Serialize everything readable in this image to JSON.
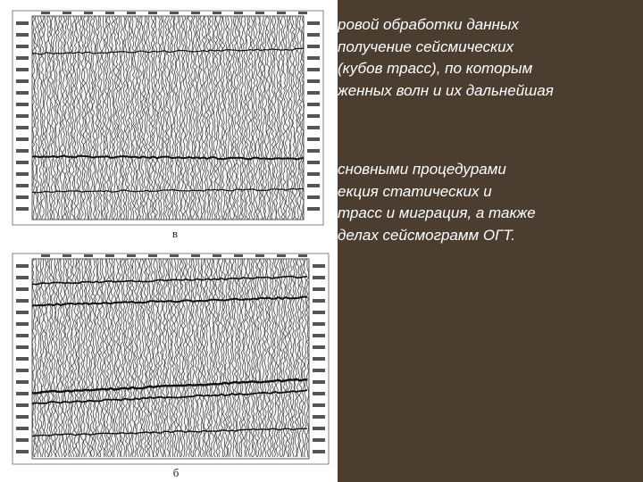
{
  "slide": {
    "paragraphs": [
      [
        "ровой обработки данных",
        "получение сейсмических",
        "(кубов трасс), по которым",
        "женных волн и их дальнейшая"
      ],
      [
        "сновными процедурами",
        "екция статических и",
        "трасс и миграция, а также",
        "делах сейсмограмм ОГТ."
      ]
    ],
    "figure": {
      "top_panel_label": "в",
      "bottom_panel_label": "б"
    }
  }
}
